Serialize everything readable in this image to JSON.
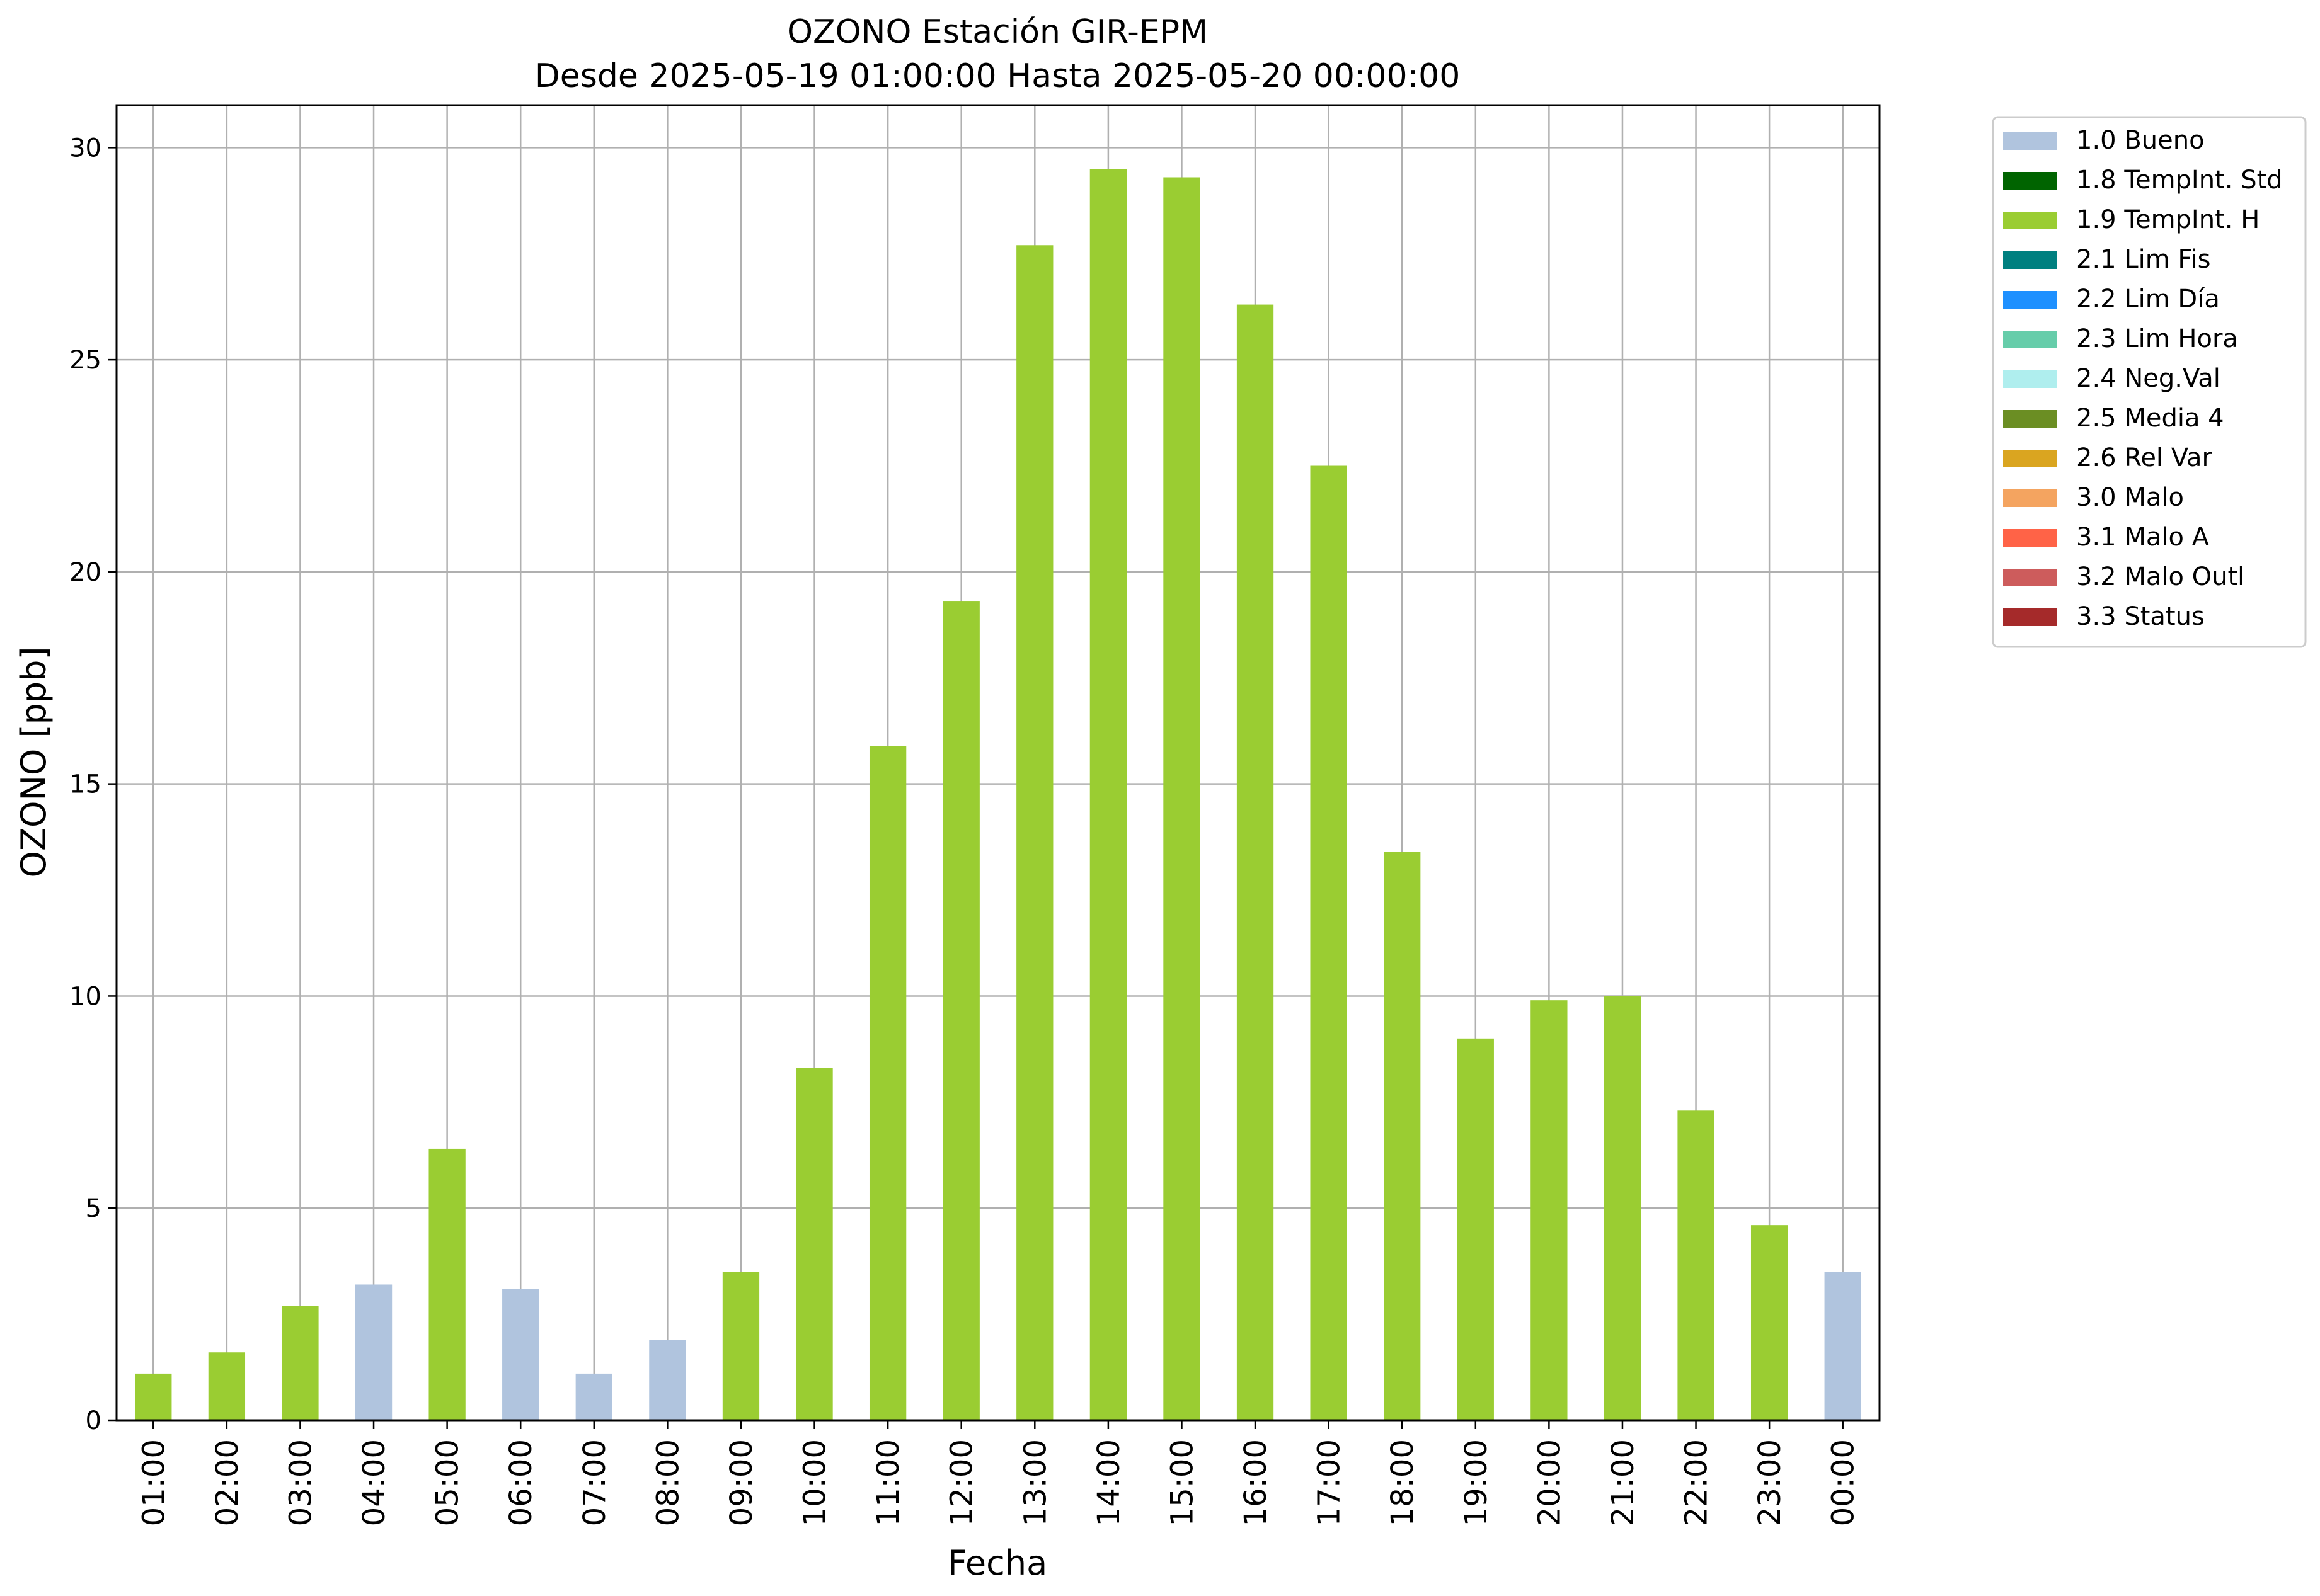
{
  "chart_data": {
    "type": "bar",
    "title_line1": "OZONO Estación GIR-EPM",
    "title_line2": "Desde 2025-05-19 01:00:00 Hasta 2025-05-20 00:00:00",
    "xlabel": "Fecha",
    "ylabel": "OZONO [ppb]",
    "ylim": [
      0,
      31
    ],
    "yticks": [
      0,
      5,
      10,
      15,
      20,
      25,
      30
    ],
    "grid": true,
    "legend_position": "outside-right-top",
    "categories": [
      "01:00",
      "02:00",
      "03:00",
      "04:00",
      "05:00",
      "06:00",
      "07:00",
      "08:00",
      "09:00",
      "10:00",
      "11:00",
      "12:00",
      "13:00",
      "14:00",
      "15:00",
      "16:00",
      "17:00",
      "18:00",
      "19:00",
      "20:00",
      "21:00",
      "22:00",
      "23:00",
      "00:00"
    ],
    "values": [
      1.1,
      1.6,
      2.7,
      3.2,
      6.4,
      3.1,
      1.1,
      1.9,
      3.5,
      8.3,
      15.9,
      19.3,
      27.7,
      29.5,
      29.3,
      26.3,
      22.5,
      13.4,
      9.0,
      9.9,
      10.0,
      7.3,
      4.6,
      3.5
    ],
    "flags": [
      "1.9 TempInt. H",
      "1.9 TempInt. H",
      "1.9 TempInt. H",
      "1.0 Bueno",
      "1.9 TempInt. H",
      "1.0 Bueno",
      "1.0 Bueno",
      "1.0 Bueno",
      "1.9 TempInt. H",
      "1.9 TempInt. H",
      "1.9 TempInt. H",
      "1.9 TempInt. H",
      "1.9 TempInt. H",
      "1.9 TempInt. H",
      "1.9 TempInt. H",
      "1.9 TempInt. H",
      "1.9 TempInt. H",
      "1.9 TempInt. H",
      "1.9 TempInt. H",
      "1.9 TempInt. H",
      "1.9 TempInt. H",
      "1.9 TempInt. H",
      "1.9 TempInt. H",
      "1.0 Bueno"
    ],
    "legend": [
      {
        "label": "1.0 Bueno",
        "color": "#b0c4de"
      },
      {
        "label": "1.8 TempInt. Std",
        "color": "#006400"
      },
      {
        "label": "1.9 TempInt. H",
        "color": "#9acd32"
      },
      {
        "label": "2.1 Lim Fis",
        "color": "#008080"
      },
      {
        "label": "2.2 Lim Día",
        "color": "#1e90ff"
      },
      {
        "label": "2.3 Lim Hora",
        "color": "#66cdaa"
      },
      {
        "label": "2.4 Neg.Val",
        "color": "#afeeee"
      },
      {
        "label": "2.5 Media 4",
        "color": "#6b8e23"
      },
      {
        "label": "2.6 Rel Var",
        "color": "#daa520"
      },
      {
        "label": "3.0 Malo",
        "color": "#f4a460"
      },
      {
        "label": "3.1 Malo A",
        "color": "#ff6347"
      },
      {
        "label": "3.2 Malo Outl",
        "color": "#cd5c5c"
      },
      {
        "label": "3.3 Status",
        "color": "#a52a2a"
      }
    ]
  }
}
